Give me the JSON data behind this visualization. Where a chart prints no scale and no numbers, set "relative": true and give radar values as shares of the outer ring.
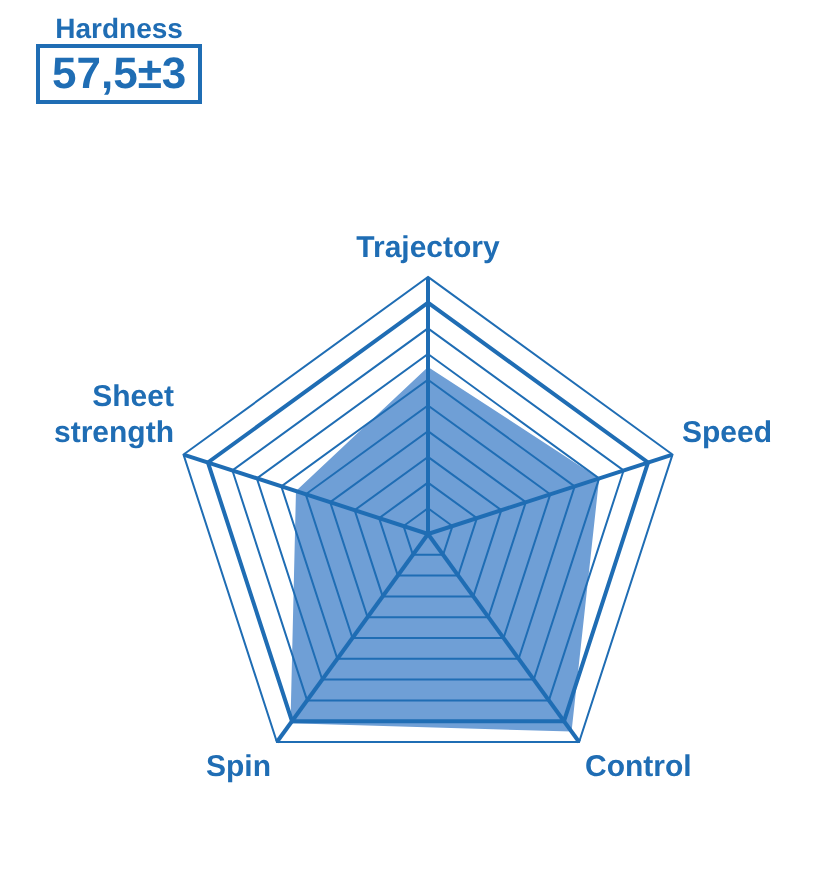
{
  "chart_data": {
    "type": "radar",
    "relative": true,
    "categories": [
      "Trajectory",
      "Speed",
      "Control",
      "Spin",
      "Sheet strength"
    ],
    "series": [
      {
        "color": "#6f9fd6",
        "values": [
          0.65,
          0.7,
          0.95,
          0.91,
          0.54
        ]
      }
    ],
    "annotations": [
      "Hardness",
      "57,5±3"
    ],
    "grid": true,
    "legend": false,
    "marker": "none"
  }
}
